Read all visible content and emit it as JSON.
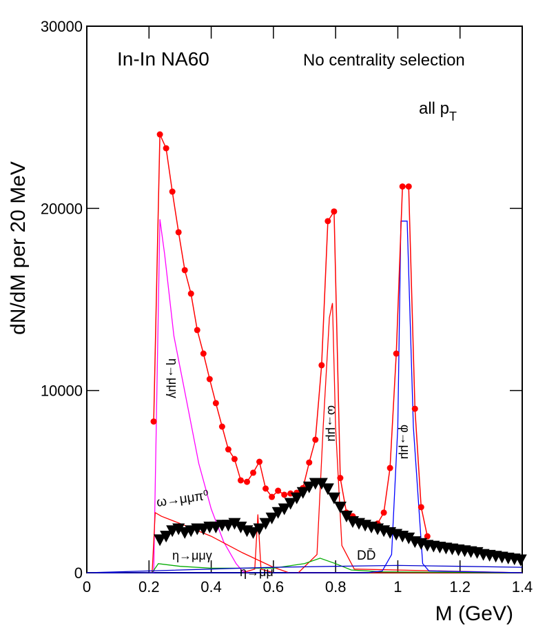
{
  "chart_data": {
    "type": "scatter",
    "title": "In-In  NA60",
    "subtitle": "No centrality selection",
    "pt_label": {
      "text": "all p",
      "sub": "T"
    },
    "xlabel": "M (GeV)",
    "ylabel": "dN/dM per 20 MeV",
    "xlim": [
      0,
      1.4
    ],
    "ylim": [
      0,
      30000
    ],
    "xticks": [
      0,
      0.2,
      0.4,
      0.6,
      0.8,
      1,
      1.2,
      1.4
    ],
    "yticks": [
      0,
      10000,
      20000,
      30000
    ],
    "annotations": [
      "η→μμγ",
      "ω→μμπ⁰",
      "η→μμγ",
      "η→μμ",
      "ω→μμ",
      "φ→μμ",
      "DD̄"
    ],
    "series": [
      {
        "color": "#ff00ff",
        "mode": "line",
        "x": [
          0.2,
          0.215,
          0.235,
          0.25,
          0.28,
          0.32,
          0.36,
          0.4,
          0.44,
          0.48,
          0.5,
          0.52
        ],
        "values": [
          0,
          0,
          19400,
          17500,
          13000,
          9500,
          6000,
          3500,
          1700,
          500,
          100,
          0
        ]
      },
      {
        "color": "#ff0000",
        "mode": "line",
        "x": [
          0,
          0.21,
          0.22,
          0.24,
          0.3,
          0.4,
          0.5,
          0.6,
          0.65,
          1.4
        ],
        "values": [
          0,
          0,
          3300,
          3100,
          2700,
          2000,
          1100,
          300,
          0,
          0
        ]
      },
      {
        "color": "#ff0000",
        "mode": "line",
        "x": [
          0.5,
          0.54,
          0.55,
          0.56,
          0.6
        ],
        "values": [
          0,
          200,
          3200,
          200,
          0
        ]
      },
      {
        "color": "#ff0000",
        "mode": "line",
        "x": [
          0.68,
          0.74,
          0.76,
          0.78,
          0.79,
          0.8,
          0.82,
          0.86,
          1.4
        ],
        "values": [
          0,
          1000,
          8000,
          14000,
          14800,
          8000,
          1500,
          200,
          0
        ]
      },
      {
        "color": "#00aa00",
        "mode": "line",
        "x": [
          0,
          0.21,
          0.23,
          0.3,
          0.4,
          0.6,
          0.7,
          0.75,
          0.8,
          0.85,
          0.95,
          1.4
        ],
        "values": [
          0,
          0,
          500,
          350,
          250,
          250,
          500,
          800,
          500,
          150,
          50,
          0
        ]
      },
      {
        "color": "#0000ff",
        "mode": "line",
        "x": [
          0,
          0.9,
          0.95,
          0.98,
          1,
          1.01,
          1.03,
          1.05,
          1.08,
          1.1,
          1.4
        ],
        "values": [
          0,
          0,
          100,
          1000,
          8000,
          19300,
          19300,
          8000,
          500,
          100,
          0
        ]
      },
      {
        "color": "#0000cc",
        "mode": "line",
        "x": [
          0,
          0.2,
          0.4,
          0.6,
          0.8,
          1,
          1.2,
          1.4
        ],
        "values": [
          0,
          100,
          200,
          300,
          350,
          400,
          350,
          300
        ]
      },
      {
        "color": "#ff0000",
        "mode": "markers+lines",
        "marker": "circle",
        "x": [
          0.215,
          0.235,
          0.255,
          0.275,
          0.295,
          0.315,
          0.335,
          0.355,
          0.375,
          0.395,
          0.415,
          0.435,
          0.455,
          0.475,
          0.495,
          0.515,
          0.535,
          0.555,
          0.575,
          0.595,
          0.615,
          0.635,
          0.655,
          0.675,
          0.695,
          0.715,
          0.735,
          0.755,
          0.775,
          0.795,
          0.815,
          0.835,
          0.855,
          0.875,
          0.895,
          0.915,
          0.935,
          0.955,
          0.975,
          0.995,
          1.015,
          1.035,
          1.055,
          1.075,
          1.095
        ],
        "values": [
          8300,
          24060,
          23300,
          20920,
          18690,
          16610,
          15320,
          13320,
          12030,
          10630,
          9310,
          8020,
          6770,
          6240,
          5070,
          4990,
          5490,
          6090,
          4620,
          4160,
          4500,
          4280,
          4350,
          4390,
          4650,
          6050,
          7300,
          11390,
          19300,
          19830,
          5200,
          3300,
          3100,
          2800,
          2700,
          2600,
          2700,
          3300,
          5750,
          12030,
          21200,
          21200,
          9000,
          3600,
          2000
        ]
      },
      {
        "color": "#000000",
        "mode": "markers",
        "marker": "triangle-down",
        "x": [
          0.235,
          0.255,
          0.275,
          0.295,
          0.315,
          0.335,
          0.355,
          0.375,
          0.395,
          0.415,
          0.435,
          0.455,
          0.475,
          0.495,
          0.515,
          0.535,
          0.555,
          0.575,
          0.595,
          0.615,
          0.635,
          0.655,
          0.675,
          0.695,
          0.715,
          0.735,
          0.755,
          0.775,
          0.795,
          0.815,
          0.835,
          0.855,
          0.875,
          0.895,
          0.915,
          0.935,
          0.955,
          0.975,
          0.995,
          1.015,
          1.035,
          1.055,
          1.075,
          1.095,
          1.115,
          1.135,
          1.155,
          1.175,
          1.195,
          1.215,
          1.235,
          1.255,
          1.275,
          1.295,
          1.315,
          1.335,
          1.355,
          1.375,
          1.395
        ],
        "values": [
          1800,
          2000,
          2300,
          2400,
          2200,
          2300,
          2400,
          2400,
          2500,
          2500,
          2600,
          2600,
          2700,
          2500,
          2300,
          2200,
          2400,
          2700,
          3000,
          3300,
          3500,
          3800,
          4100,
          4400,
          4700,
          4900,
          4900,
          4600,
          4100,
          3600,
          3100,
          2800,
          2700,
          2600,
          2500,
          2400,
          2300,
          2200,
          2100,
          2000,
          1900,
          1700,
          1600,
          1500,
          1450,
          1400,
          1350,
          1300,
          1250,
          1200,
          1150,
          1100,
          1000,
          950,
          900,
          850,
          800,
          750,
          700
        ]
      }
    ]
  }
}
